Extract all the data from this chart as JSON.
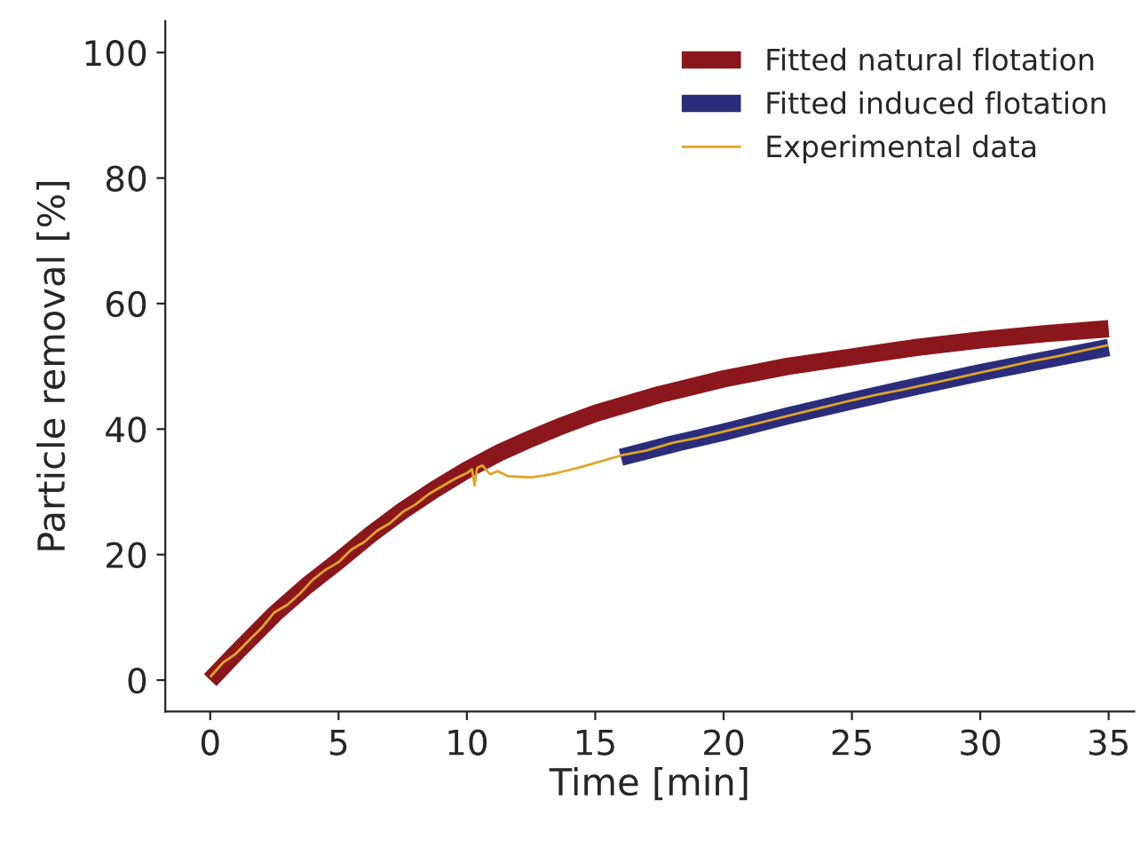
{
  "chart_data": {
    "type": "line",
    "xlabel": "Time [min]",
    "ylabel": "Particle removal [%]",
    "xlim": [
      -1.75,
      36
    ],
    "ylim": [
      -5,
      105
    ],
    "xticks": [
      0,
      5,
      10,
      15,
      20,
      25,
      30,
      35
    ],
    "yticks": [
      0,
      20,
      40,
      60,
      80,
      100
    ],
    "grid": false,
    "legend": "top right",
    "series": [
      {
        "name": "Fitted natural flotation",
        "color": "#8b161b",
        "x": [
          0,
          1,
          2.5,
          3.75,
          5,
          6.25,
          7.5,
          8.75,
          10,
          11.25,
          12.5,
          13.75,
          15,
          17.5,
          20,
          22.5,
          25,
          27.5,
          30,
          32.5,
          35
        ],
        "values": [
          0,
          4.3,
          10.5,
          15,
          19,
          23.2,
          27,
          30.4,
          33.5,
          36.2,
          38.5,
          40.6,
          42.5,
          45.5,
          48,
          50,
          51.5,
          53,
          54.2,
          55.2,
          56
        ]
      },
      {
        "name": "Fitted induced flotation",
        "color": "#2b2d7c",
        "x": [
          16,
          18,
          20,
          22.5,
          25,
          27.5,
          30,
          32.5,
          35
        ],
        "values": [
          35.5,
          37.6,
          39.5,
          42.1,
          44.5,
          46.8,
          49,
          51,
          53
        ]
      },
      {
        "name": "Experimental data",
        "color": "#e0a526",
        "x": [
          0,
          0.5,
          1,
          1.5,
          2,
          2.5,
          3,
          3.5,
          4,
          4.5,
          5,
          5.5,
          6,
          6.5,
          7,
          7.5,
          8,
          8.5,
          9,
          9.5,
          10,
          10.2,
          10.3,
          10.4,
          10.6,
          10.9,
          11.2,
          11.6,
          12,
          12.5,
          13,
          13.5,
          14,
          14.5,
          15,
          15.5,
          16,
          17,
          18,
          19,
          20,
          21,
          22,
          23,
          24,
          25,
          26,
          27,
          28,
          29,
          30,
          31,
          32,
          33,
          34,
          35
        ],
        "values": [
          0.5,
          2.8,
          4.2,
          6.3,
          8.3,
          10.8,
          12.0,
          13.8,
          16.0,
          17.6,
          18.8,
          20.8,
          22.0,
          23.8,
          25.0,
          26.8,
          28.0,
          29.6,
          30.8,
          32.0,
          33.0,
          33.6,
          31.0,
          33.8,
          34.2,
          32.8,
          33.3,
          32.5,
          32.4,
          32.3,
          32.6,
          33.0,
          33.5,
          34.0,
          34.6,
          35.2,
          35.8,
          36.6,
          37.8,
          38.6,
          39.6,
          40.6,
          41.6,
          42.6,
          43.6,
          44.6,
          45.5,
          46.3,
          47.2,
          48.1,
          49.0,
          49.9,
          50.8,
          51.6,
          52.5,
          53.4
        ]
      }
    ]
  }
}
